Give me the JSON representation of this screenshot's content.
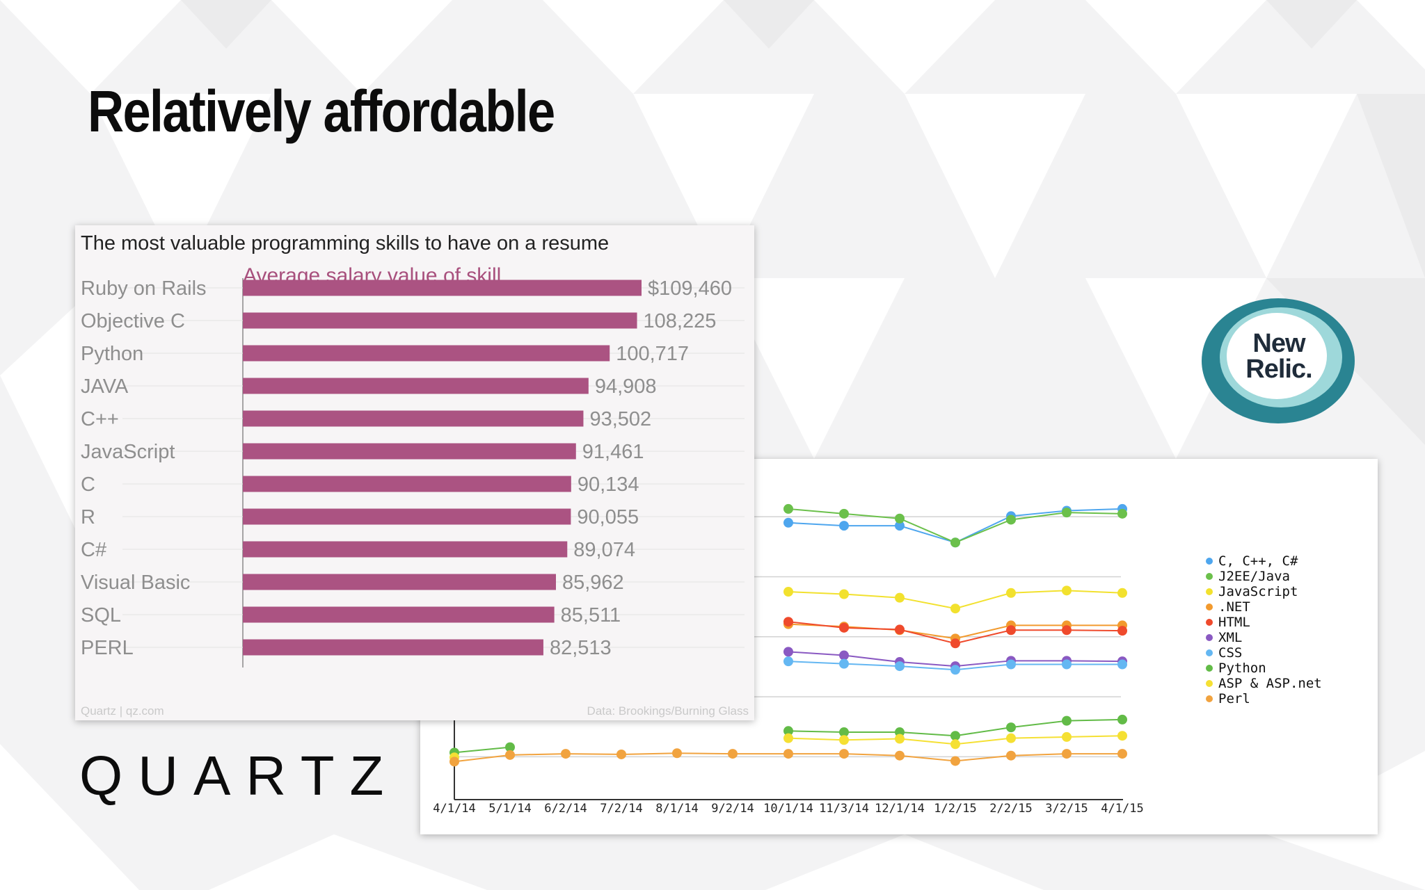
{
  "slide": {
    "title": "Relatively affordable",
    "brand": "QUARTZ"
  },
  "newrelic": {
    "line1": "New",
    "line2": "Relic."
  },
  "colors": {
    "bar": "#ab5382",
    "subtitle": "#a8507d",
    "logo_outer": "#2a8492",
    "logo_ring": "#9ed8da"
  },
  "chart_data": [
    {
      "type": "bar",
      "title": "The most valuable programming skills to have on a resume",
      "subtitle": "Average salary value of skill",
      "categories": [
        "Ruby on Rails",
        "Objective C",
        "Python",
        "JAVA",
        "C++",
        "JavaScript",
        "C",
        "R",
        "C#",
        "Visual Basic",
        "SQL",
        "PERL"
      ],
      "values": [
        109460,
        108225,
        100717,
        94908,
        93502,
        91461,
        90134,
        90055,
        89074,
        85962,
        85511,
        82513
      ],
      "value_labels": [
        "$109,460",
        "108,225",
        "100,717",
        "94,908",
        "93,502",
        "91,461",
        "90,134",
        "90,055",
        "89,074",
        "85,962",
        "85,511",
        "82,513"
      ],
      "source_left": "Quartz | qz.com",
      "source_right": "Data: Brookings/Burning Glass"
    },
    {
      "type": "line",
      "x": [
        "4/1/14",
        "5/1/14",
        "6/2/14",
        "7/2/14",
        "8/1/14",
        "9/2/14",
        "10/1/14",
        "11/3/14",
        "12/1/14",
        "1/2/15",
        "2/2/15",
        "3/2/15",
        "4/1/15"
      ],
      "grid": true,
      "legend_position": "right",
      "series": [
        {
          "name": "C, C++, C#",
          "color": "#4ea6ee",
          "values": [
            null,
            null,
            null,
            null,
            null,
            null,
            4.15,
            4.1,
            4.1,
            3.82,
            4.26,
            4.35,
            4.38
          ]
        },
        {
          "name": "J2EE/Java",
          "color": "#6bc04b",
          "values": [
            null,
            null,
            null,
            null,
            null,
            null,
            4.38,
            4.3,
            4.22,
            3.82,
            4.2,
            4.32,
            4.3
          ]
        },
        {
          "name": "JavaScript",
          "color": "#f2e12e",
          "values": [
            null,
            null,
            null,
            null,
            null,
            null,
            3.0,
            2.96,
            2.9,
            2.72,
            2.98,
            3.02,
            2.98
          ]
        },
        {
          "name": ".NET",
          "color": "#f29a2e",
          "values": [
            null,
            null,
            null,
            null,
            null,
            null,
            2.46,
            2.42,
            2.36,
            2.22,
            2.44,
            2.44,
            2.44
          ]
        },
        {
          "name": "HTML",
          "color": "#ef4a2c",
          "values": [
            null,
            null,
            null,
            null,
            null,
            null,
            2.5,
            2.4,
            2.37,
            2.14,
            2.36,
            2.36,
            2.35
          ]
        },
        {
          "name": "XML",
          "color": "#8a59c2",
          "values": [
            null,
            null,
            null,
            null,
            null,
            null,
            2.0,
            1.94,
            1.83,
            1.76,
            1.85,
            1.85,
            1.84
          ]
        },
        {
          "name": "CSS",
          "color": "#64b7f2",
          "values": [
            null,
            null,
            null,
            null,
            null,
            null,
            1.84,
            1.8,
            1.76,
            1.7,
            1.79,
            1.79,
            1.79
          ]
        },
        {
          "name": "Python",
          "color": "#62bb47",
          "values": [
            0.32,
            0.41,
            null,
            null,
            null,
            null,
            0.68,
            0.66,
            0.66,
            0.6,
            0.74,
            0.85,
            0.87
          ]
        },
        {
          "name": "ASP & ASP.net",
          "color": "#f5e033",
          "values": [
            0.24,
            null,
            null,
            null,
            null,
            null,
            0.56,
            0.53,
            0.55,
            0.46,
            0.56,
            0.58,
            0.6
          ]
        },
        {
          "name": "Perl",
          "color": "#f1a33f",
          "values": [
            0.17,
            0.28,
            0.3,
            0.29,
            0.31,
            0.3,
            0.3,
            0.3,
            0.27,
            0.18,
            0.27,
            0.3,
            0.3
          ]
        }
      ]
    }
  ]
}
